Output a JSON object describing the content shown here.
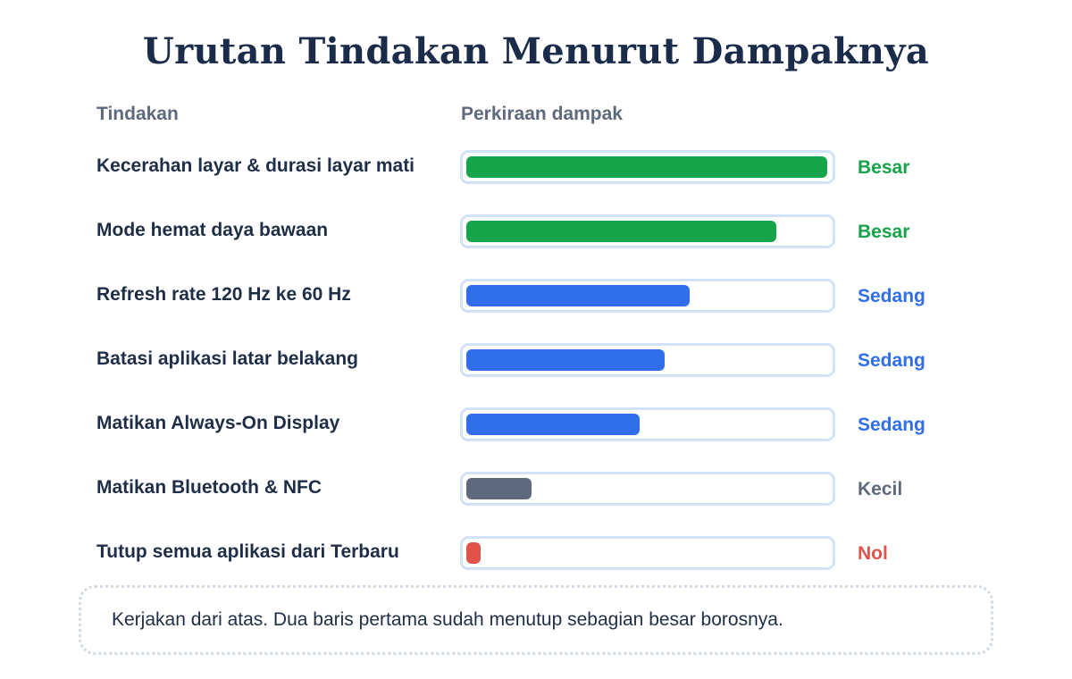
{
  "title": "Urutan Tindakan Menurut Dampaknya",
  "columns": {
    "action": "Tindakan",
    "impact": "Perkiraan dampak"
  },
  "colors": {
    "besar": "#16a34a",
    "sedang": "#2f6ee8",
    "kecil": "#5e6a7c",
    "nol": "#e0524a",
    "track_border": "#d3e3f7"
  },
  "chart_data": {
    "type": "bar",
    "orientation": "horizontal",
    "categories": [
      "Kecerahan layar & durasi layar mati",
      "Mode hemat daya bawaan",
      "Refresh rate 120 Hz ke 60 Hz",
      "Batasi aplikasi latar belakang",
      "Matikan Always-On Display",
      "Matikan Bluetooth & NFC",
      "Tutup semua aplikasi dari Terbaru"
    ],
    "values": [
      1.0,
      0.86,
      0.62,
      0.55,
      0.48,
      0.18,
      0.04
    ],
    "levels": [
      "Besar",
      "Besar",
      "Sedang",
      "Sedang",
      "Sedang",
      "Kecil",
      "Nol"
    ],
    "level_keys": [
      "besar",
      "besar",
      "sedang",
      "sedang",
      "sedang",
      "kecil",
      "nol"
    ],
    "ylim": [
      0,
      1
    ],
    "grid": false,
    "legend": "none"
  },
  "note": "Kerjakan dari atas. Dua baris pertama sudah menutup sebagian besar borosnya."
}
